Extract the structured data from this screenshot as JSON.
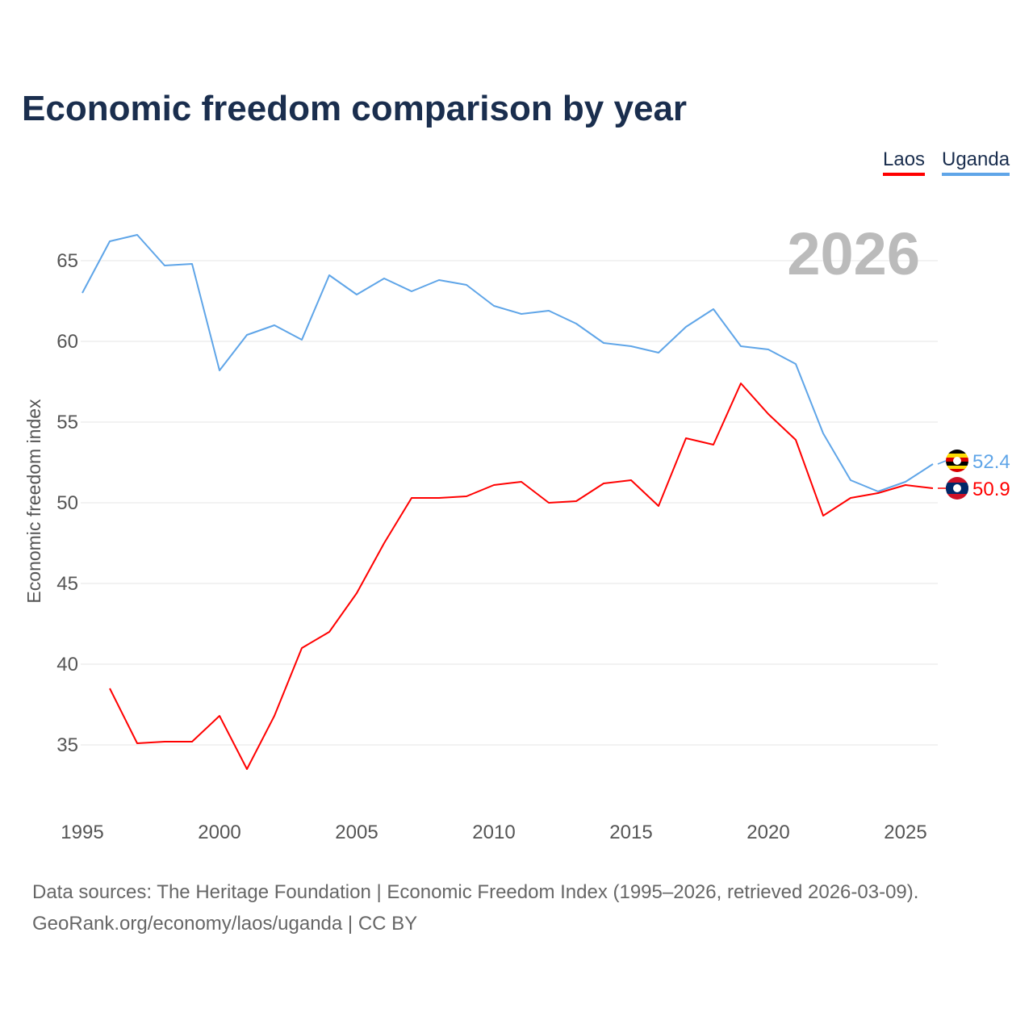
{
  "chart_data": {
    "type": "line",
    "title": "Economic freedom comparison by year",
    "ylabel": "Economic freedom index",
    "xlabel": "",
    "ylim": [
      30,
      68
    ],
    "xlim": [
      1995,
      2026
    ],
    "yticks": [
      35,
      40,
      45,
      50,
      55,
      60,
      65
    ],
    "xticks": [
      1995,
      2000,
      2005,
      2010,
      2015,
      2020,
      2025
    ],
    "grid": true,
    "legend_position": "top-right",
    "current_year_label": "2026",
    "series": [
      {
        "name": "Laos",
        "color": "#ff0000",
        "end_label": "50.9",
        "x": [
          1996,
          1997,
          1998,
          1999,
          2000,
          2001,
          2002,
          2003,
          2004,
          2005,
          2006,
          2007,
          2008,
          2009,
          2010,
          2011,
          2012,
          2013,
          2014,
          2015,
          2016,
          2017,
          2018,
          2019,
          2020,
          2021,
          2022,
          2023,
          2024,
          2025,
          2026
        ],
        "values": [
          38.5,
          35.1,
          35.2,
          35.2,
          36.8,
          33.5,
          36.8,
          41.0,
          42.0,
          44.4,
          47.5,
          50.3,
          50.3,
          50.4,
          51.1,
          51.3,
          50.0,
          50.1,
          51.2,
          51.4,
          49.8,
          54.0,
          53.6,
          57.4,
          55.5,
          53.9,
          49.2,
          50.3,
          50.6,
          51.1,
          50.9
        ]
      },
      {
        "name": "Uganda",
        "color": "#5fa5e8",
        "end_label": "52.4",
        "x": [
          1995,
          1996,
          1997,
          1998,
          1999,
          2000,
          2001,
          2002,
          2003,
          2004,
          2005,
          2006,
          2007,
          2008,
          2009,
          2010,
          2011,
          2012,
          2013,
          2014,
          2015,
          2016,
          2017,
          2018,
          2019,
          2020,
          2021,
          2022,
          2023,
          2024,
          2025,
          2026
        ],
        "values": [
          63.0,
          66.2,
          66.6,
          64.7,
          64.8,
          58.2,
          60.4,
          61.0,
          60.1,
          64.1,
          62.9,
          63.9,
          63.1,
          63.8,
          63.5,
          62.2,
          61.7,
          61.9,
          61.1,
          59.9,
          59.7,
          59.3,
          60.9,
          62.0,
          59.7,
          59.5,
          58.6,
          54.3,
          51.4,
          50.7,
          51.3,
          52.4
        ]
      }
    ]
  },
  "footer": {
    "line1": "Data sources: The Heritage Foundation | Economic Freedom Index (1995–2026, retrieved 2026-03-09).",
    "line2": "GeoRank.org/economy/laos/uganda | CC BY"
  }
}
